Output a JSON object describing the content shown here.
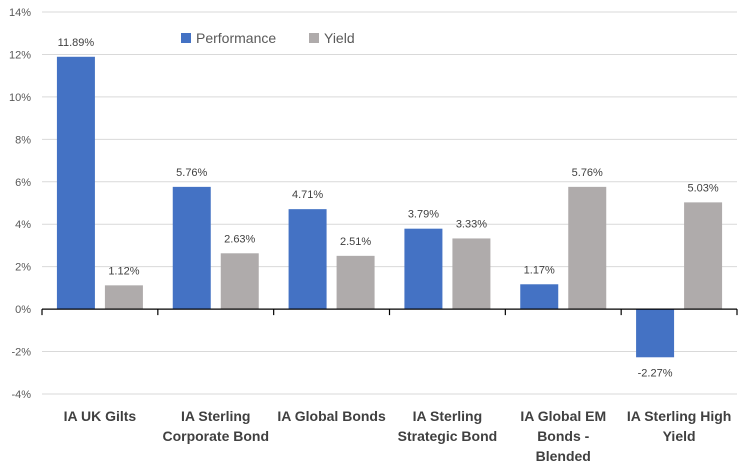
{
  "chart_data": {
    "type": "bar",
    "categories": [
      [
        "IA UK Gilts"
      ],
      [
        "IA Sterling",
        "Corporate Bond"
      ],
      [
        "IA Global Bonds"
      ],
      [
        "IA Sterling",
        "Strategic Bond"
      ],
      [
        "IA Global EM",
        "Bonds -",
        "Blended"
      ],
      [
        "IA Sterling High",
        "Yield"
      ]
    ],
    "series": [
      {
        "name": "Performance",
        "color": "#4472C4",
        "values": [
          11.89,
          5.76,
          4.71,
          3.79,
          1.17,
          -2.27
        ],
        "labels": [
          "11.89%",
          "5.76%",
          "4.71%",
          "3.79%",
          "1.17%",
          "-2.27%"
        ]
      },
      {
        "name": "Yield",
        "color": "#AFABAB",
        "values": [
          1.12,
          2.63,
          2.51,
          3.33,
          5.76,
          5.03
        ],
        "labels": [
          "1.12%",
          "2.63%",
          "2.51%",
          "3.33%",
          "5.76%",
          "5.03%"
        ]
      }
    ],
    "ylim": [
      -4,
      14
    ],
    "yticks": [
      14,
      12,
      10,
      8,
      6,
      4,
      2,
      0,
      -2,
      -4
    ],
    "ytick_labels": [
      "14%",
      "12%",
      "10%",
      "8%",
      "6%",
      "4%",
      "2%",
      "0%",
      "-2%",
      "-4%"
    ],
    "grid": true,
    "legend": "top-center"
  }
}
